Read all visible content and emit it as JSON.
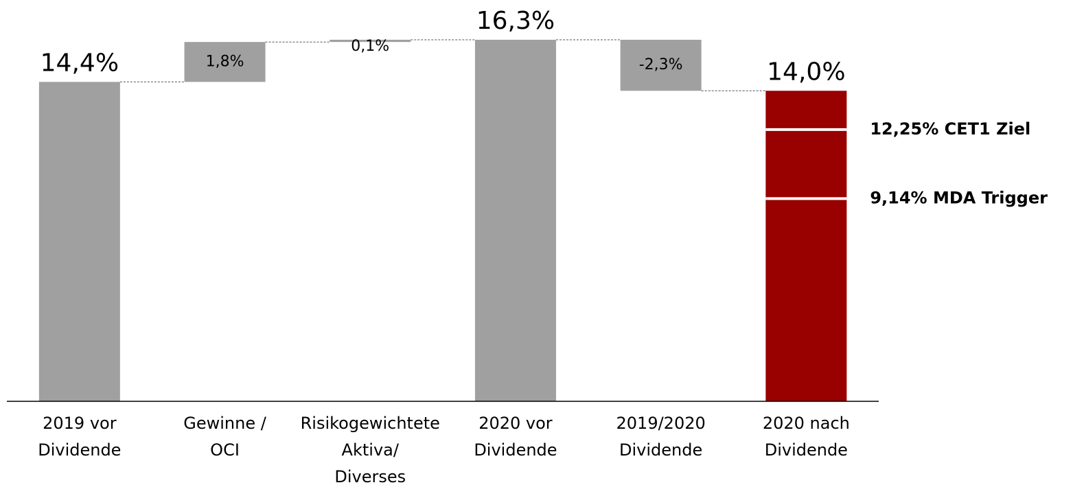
{
  "chart_data": {
    "type": "waterfall",
    "categories": [
      [
        "2019 vor",
        "Dividende"
      ],
      [
        "Gewinne /",
        "OCI"
      ],
      [
        "Risikogewichtete",
        "Aktiva/",
        "Diverses"
      ],
      [
        "2020 vor",
        "Dividende"
      ],
      [
        "2019/2020",
        "Dividende"
      ],
      [
        "2020 nach",
        "Dividende"
      ]
    ],
    "values": [
      14.4,
      1.8,
      0.1,
      16.3,
      -2.3,
      14.0
    ],
    "value_labels": [
      "14,4%",
      "1,8%",
      "0,1%",
      "16,3%",
      "-2,3%",
      "14,0%"
    ],
    "totals": [
      true,
      false,
      false,
      true,
      false,
      true
    ],
    "colors": [
      "#a0a0a0",
      "#a0a0a0",
      "#a0a0a0",
      "#a0a0a0",
      "#a0a0a0",
      "#990000"
    ],
    "ylim": [
      0,
      18
    ],
    "reference_lines": [
      {
        "value": 12.25,
        "label": "12,25% CET1 Ziel",
        "color": "#ffffff"
      },
      {
        "value": 9.14,
        "label": "9,14% MDA Trigger",
        "color": "#ffffff"
      }
    ]
  }
}
